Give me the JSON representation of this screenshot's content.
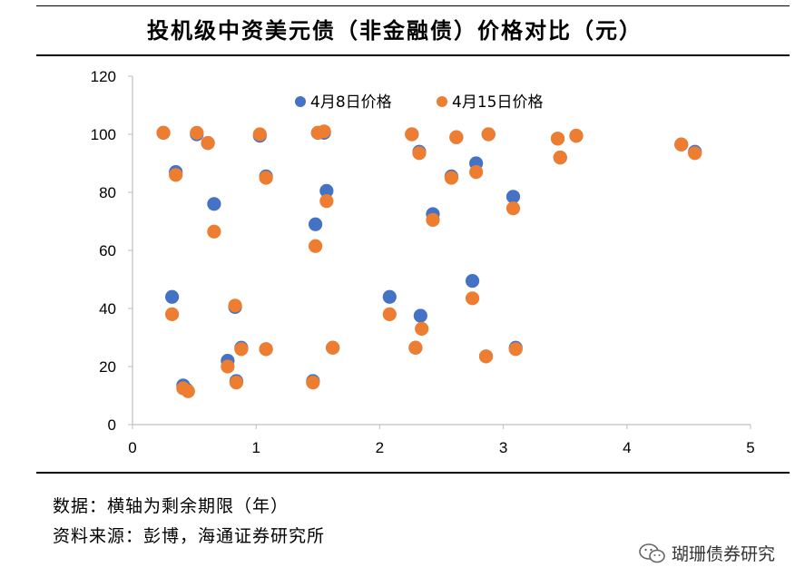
{
  "page": {
    "title": "投机级中资美元债（非金融债）价格对比（元）",
    "notes": [
      "数据：横轴为剩余期限（年）",
      "资料来源：彭博，海通证券研究所"
    ],
    "watermark": "瑚珊债券研究",
    "watermark_icon": "wechat-icon"
  },
  "chart_data": {
    "type": "scatter",
    "title": "投机级中资美元债（非金融债）价格对比（元）",
    "xlabel": "",
    "ylabel": "",
    "xlim": [
      0,
      5
    ],
    "ylim": [
      0,
      120
    ],
    "xticks": [
      0,
      1,
      2,
      3,
      4,
      5
    ],
    "yticks": [
      0,
      20,
      40,
      60,
      80,
      100,
      120
    ],
    "grid": false,
    "legend": "top-center",
    "series": [
      {
        "name": "4月8日价格",
        "color": "#4472C4",
        "points": [
          [
            0.25,
            100.5
          ],
          [
            0.35,
            87
          ],
          [
            0.32,
            44
          ],
          [
            0.41,
            13.5
          ],
          [
            0.44,
            12
          ],
          [
            0.52,
            100
          ],
          [
            0.61,
            97
          ],
          [
            0.66,
            76
          ],
          [
            0.77,
            22
          ],
          [
            0.83,
            40.5
          ],
          [
            0.84,
            15
          ],
          [
            0.88,
            26.5
          ],
          [
            1.03,
            99.5
          ],
          [
            1.08,
            85.5
          ],
          [
            1.08,
            26
          ],
          [
            1.46,
            15
          ],
          [
            1.48,
            69
          ],
          [
            1.5,
            100.5
          ],
          [
            1.55,
            100.5
          ],
          [
            1.57,
            80.5
          ],
          [
            1.62,
            26.5
          ],
          [
            2.08,
            44
          ],
          [
            2.26,
            100
          ],
          [
            2.29,
            26.5
          ],
          [
            2.32,
            94
          ],
          [
            2.33,
            37.5
          ],
          [
            2.43,
            72.5
          ],
          [
            2.58,
            85.5
          ],
          [
            2.62,
            99
          ],
          [
            2.75,
            49.5
          ],
          [
            2.78,
            90
          ],
          [
            2.86,
            23.5
          ],
          [
            2.88,
            100
          ],
          [
            3.08,
            78.5
          ],
          [
            3.1,
            26.5
          ],
          [
            3.44,
            98.5
          ],
          [
            3.46,
            92
          ],
          [
            3.59,
            99.5
          ],
          [
            4.44,
            96.5
          ],
          [
            4.55,
            94
          ]
        ]
      },
      {
        "name": "4月15日价格",
        "color": "#ED7D31",
        "points": [
          [
            0.25,
            100.5
          ],
          [
            0.35,
            86
          ],
          [
            0.32,
            38
          ],
          [
            0.41,
            12.5
          ],
          [
            0.45,
            11.5
          ],
          [
            0.52,
            100.5
          ],
          [
            0.61,
            97
          ],
          [
            0.66,
            66.5
          ],
          [
            0.77,
            20
          ],
          [
            0.83,
            41
          ],
          [
            0.84,
            14.5
          ],
          [
            0.88,
            26
          ],
          [
            1.03,
            100
          ],
          [
            1.08,
            85
          ],
          [
            1.08,
            26
          ],
          [
            1.46,
            14.5
          ],
          [
            1.48,
            61.5
          ],
          [
            1.5,
            100.5
          ],
          [
            1.55,
            101
          ],
          [
            1.57,
            77
          ],
          [
            1.62,
            26.5
          ],
          [
            2.08,
            38
          ],
          [
            2.26,
            100
          ],
          [
            2.29,
            26.5
          ],
          [
            2.32,
            93.5
          ],
          [
            2.34,
            33
          ],
          [
            2.43,
            70.5
          ],
          [
            2.58,
            85
          ],
          [
            2.62,
            99
          ],
          [
            2.75,
            43.5
          ],
          [
            2.78,
            87
          ],
          [
            2.86,
            23.5
          ],
          [
            2.88,
            100
          ],
          [
            3.08,
            74.5
          ],
          [
            3.1,
            26
          ],
          [
            3.44,
            98.5
          ],
          [
            3.46,
            92
          ],
          [
            3.59,
            99.5
          ],
          [
            4.44,
            96.5
          ],
          [
            4.55,
            93.5
          ]
        ]
      }
    ]
  }
}
